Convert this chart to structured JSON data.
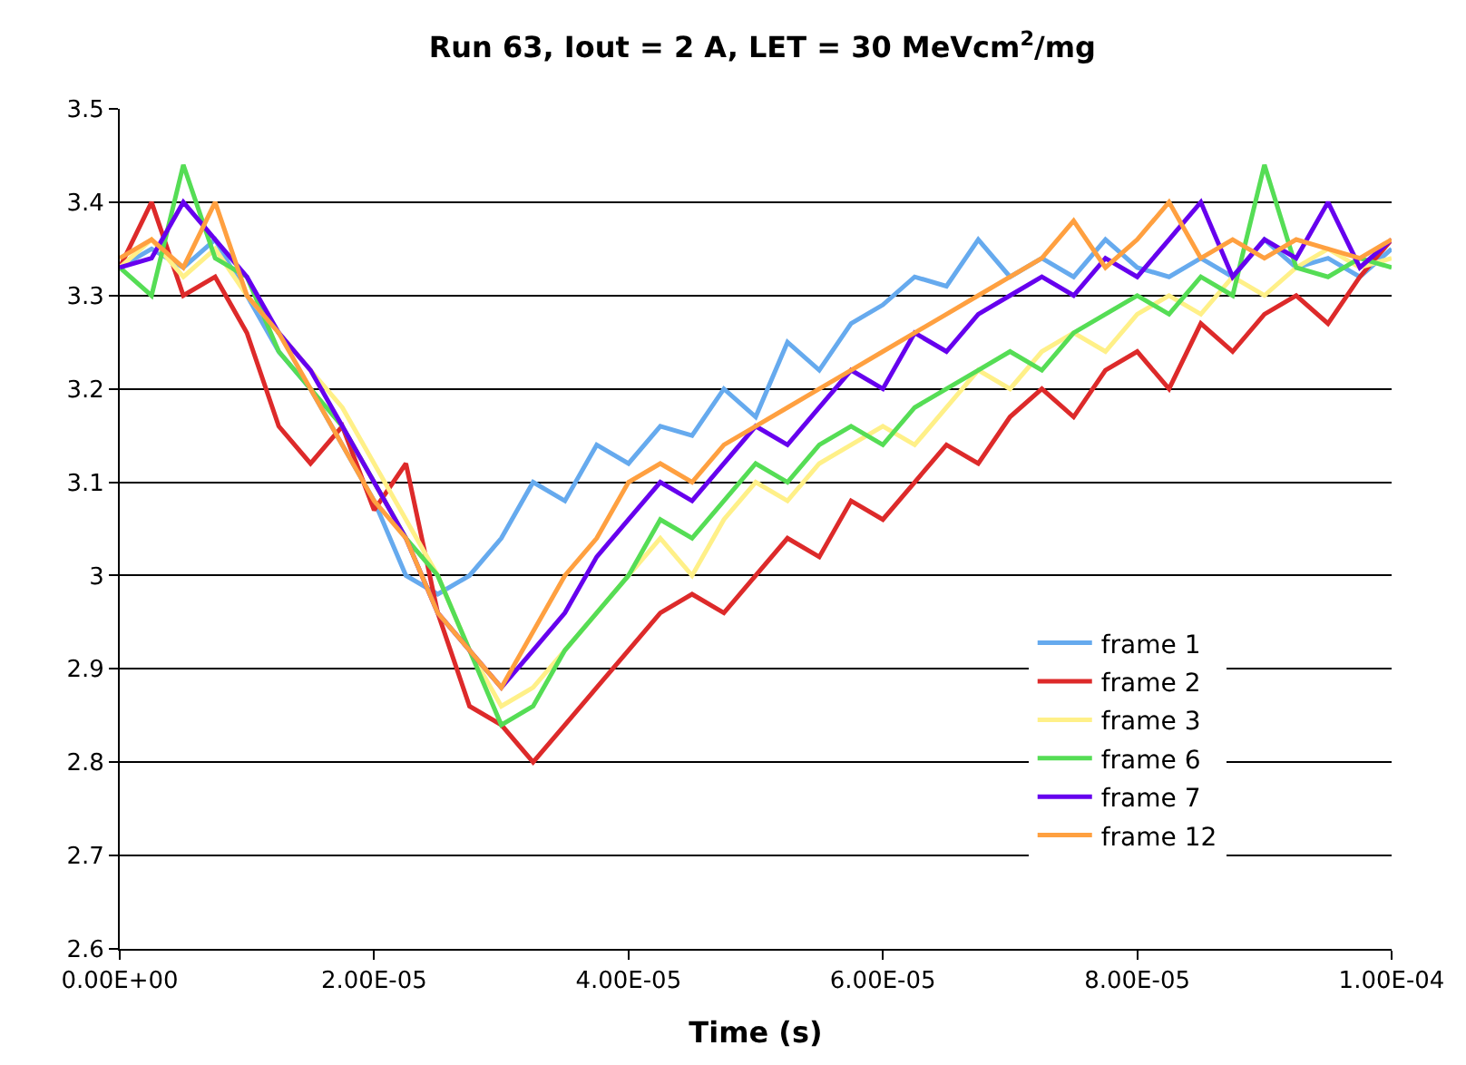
{
  "chart_data": {
    "type": "line",
    "title": "Run 63, Iout = 2 A, LET = 30 MeVcm$^{2}$/mg",
    "xlabel": "Time (s)",
    "x": [
      0,
      2.5e-06,
      5e-06,
      7.5e-06,
      1e-05,
      1.25e-05,
      1.5e-05,
      1.75e-05,
      2e-05,
      2.25e-05,
      2.5e-05,
      2.75e-05,
      3e-05,
      3.25e-05,
      3.5e-05,
      3.75e-05,
      4e-05,
      4.25e-05,
      4.5e-05,
      4.75e-05,
      5e-05,
      5.25e-05,
      5.5e-05,
      5.75e-05,
      6e-05,
      6.25e-05,
      6.5e-05,
      6.75e-05,
      7e-05,
      7.25e-05,
      7.5e-05,
      7.75e-05,
      8e-05,
      8.25e-05,
      8.5e-05,
      8.75e-05,
      9e-05,
      9.25e-05,
      9.5e-05,
      9.75e-05,
      0.0001
    ],
    "series": [
      {
        "name": "frame 1",
        "color": "#66aaee",
        "values": [
          3.33,
          3.35,
          3.33,
          3.36,
          3.3,
          3.24,
          3.2,
          3.14,
          3.08,
          3.0,
          2.98,
          3.0,
          3.04,
          3.1,
          3.08,
          3.14,
          3.12,
          3.16,
          3.15,
          3.2,
          3.17,
          3.25,
          3.22,
          3.27,
          3.29,
          3.32,
          3.31,
          3.36,
          3.32,
          3.34,
          3.32,
          3.36,
          3.33,
          3.32,
          3.34,
          3.32,
          3.36,
          3.33,
          3.34,
          3.32,
          3.35
        ]
      },
      {
        "name": "frame 2",
        "color": "#dd2a2a",
        "values": [
          3.33,
          3.4,
          3.3,
          3.32,
          3.26,
          3.16,
          3.12,
          3.16,
          3.07,
          3.12,
          2.96,
          2.86,
          2.84,
          2.8,
          2.84,
          2.88,
          2.92,
          2.96,
          2.98,
          2.96,
          3.0,
          3.04,
          3.02,
          3.08,
          3.06,
          3.1,
          3.14,
          3.12,
          3.17,
          3.2,
          3.17,
          3.22,
          3.24,
          3.2,
          3.27,
          3.24,
          3.28,
          3.3,
          3.27,
          3.32,
          3.36
        ]
      },
      {
        "name": "frame 3",
        "color": "#fff088",
        "values": [
          3.33,
          3.36,
          3.32,
          3.35,
          3.3,
          3.26,
          3.22,
          3.18,
          3.12,
          3.06,
          3.0,
          2.92,
          2.86,
          2.88,
          2.92,
          2.96,
          3.0,
          3.04,
          3.0,
          3.06,
          3.1,
          3.08,
          3.12,
          3.14,
          3.16,
          3.14,
          3.18,
          3.22,
          3.2,
          3.24,
          3.26,
          3.24,
          3.28,
          3.3,
          3.28,
          3.32,
          3.3,
          3.33,
          3.35,
          3.33,
          3.34
        ]
      },
      {
        "name": "frame 6",
        "color": "#55dd55",
        "values": [
          3.33,
          3.3,
          3.44,
          3.34,
          3.32,
          3.24,
          3.2,
          3.16,
          3.1,
          3.04,
          3.0,
          2.92,
          2.84,
          2.86,
          2.92,
          2.96,
          3.0,
          3.06,
          3.04,
          3.08,
          3.12,
          3.1,
          3.14,
          3.16,
          3.14,
          3.18,
          3.2,
          3.22,
          3.24,
          3.22,
          3.26,
          3.28,
          3.3,
          3.28,
          3.32,
          3.3,
          3.44,
          3.33,
          3.32,
          3.34,
          3.33
        ]
      },
      {
        "name": "frame 7",
        "color": "#6600ee",
        "values": [
          3.33,
          3.34,
          3.4,
          3.36,
          3.32,
          3.26,
          3.22,
          3.16,
          3.1,
          3.04,
          2.96,
          2.92,
          2.88,
          2.92,
          2.96,
          3.02,
          3.06,
          3.1,
          3.08,
          3.12,
          3.16,
          3.14,
          3.18,
          3.22,
          3.2,
          3.26,
          3.24,
          3.28,
          3.3,
          3.32,
          3.3,
          3.34,
          3.32,
          3.36,
          3.4,
          3.32,
          3.36,
          3.34,
          3.4,
          3.33,
          3.36
        ]
      },
      {
        "name": "frame 12",
        "color": "#ffa040",
        "values": [
          3.34,
          3.36,
          3.33,
          3.4,
          3.3,
          3.26,
          3.2,
          3.14,
          3.08,
          3.04,
          2.96,
          2.92,
          2.88,
          2.94,
          3.0,
          3.04,
          3.1,
          3.12,
          3.1,
          3.14,
          3.16,
          3.18,
          3.2,
          3.22,
          3.24,
          3.26,
          3.28,
          3.3,
          3.32,
          3.34,
          3.38,
          3.33,
          3.36,
          3.4,
          3.34,
          3.36,
          3.34,
          3.36,
          3.35,
          3.34,
          3.36
        ]
      }
    ],
    "xlim": [
      0,
      0.0001
    ],
    "xticks": [
      {
        "value": 0,
        "label": "0.00E+00"
      },
      {
        "value": 2e-05,
        "label": "2.00E-05"
      },
      {
        "value": 4e-05,
        "label": "4.00E-05"
      },
      {
        "value": 6e-05,
        "label": "6.00E-05"
      },
      {
        "value": 8e-05,
        "label": "8.00E-05"
      },
      {
        "value": 0.0001,
        "label": "1.00E-04"
      }
    ],
    "ylim": [
      2.6,
      3.5
    ],
    "yticks": [
      2.6,
      2.7,
      2.8,
      2.9,
      3,
      3.1,
      3.2,
      3.3,
      3.4,
      3.5
    ],
    "grid": "y",
    "legend": "bottom right",
    "marker": "none",
    "line_style": "solid"
  }
}
